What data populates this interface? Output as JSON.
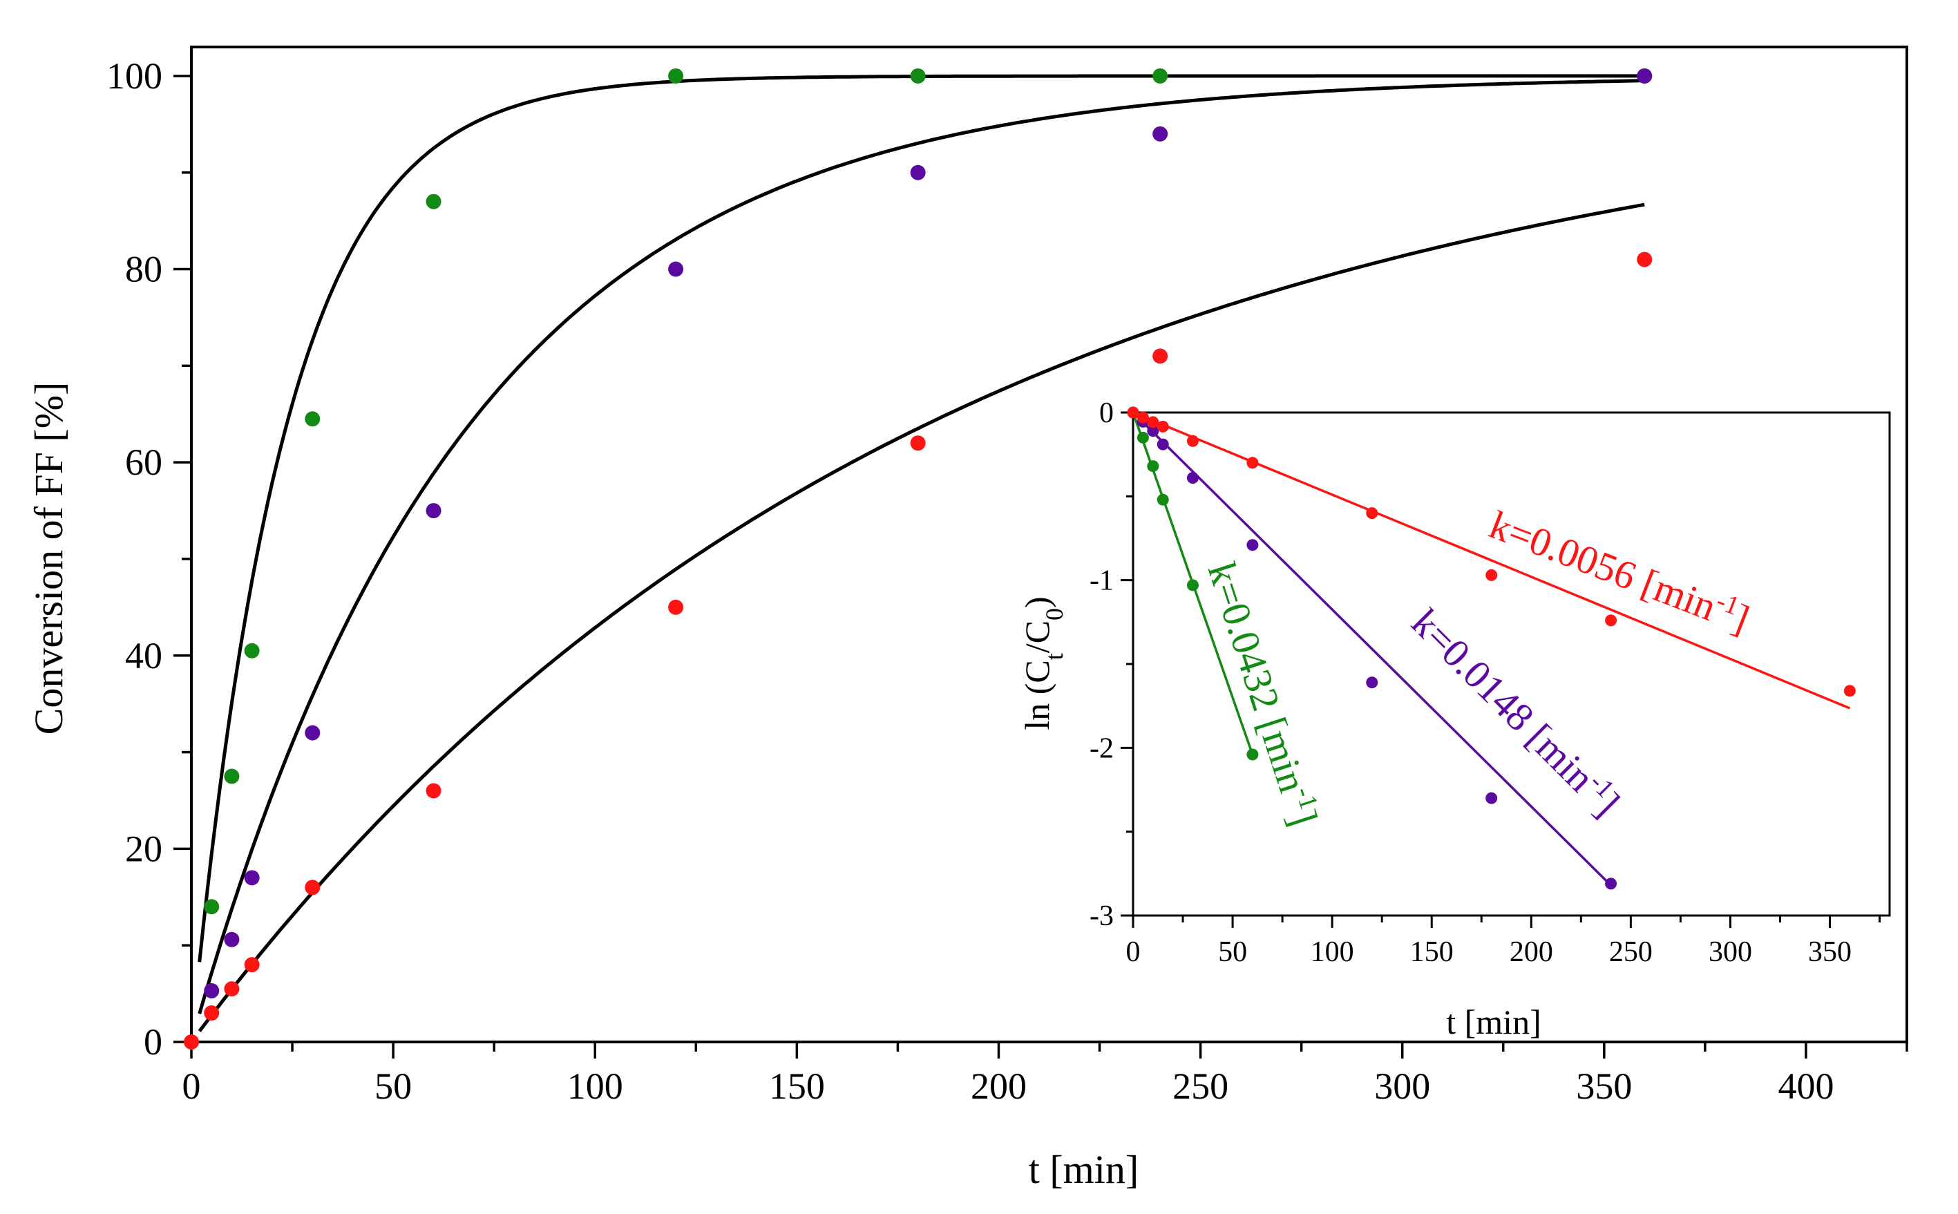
{
  "colors": {
    "green": "#138a13",
    "purple": "#5a0aa0",
    "red": "#ff1414",
    "axis": "#000000",
    "fit": "#000000"
  },
  "chart_data": [
    {
      "type": "scatter",
      "title": "",
      "xlabel": "t [min]",
      "ylabel": "Conversion of FF [%]",
      "xlim": [
        0,
        425
      ],
      "ylim": [
        0,
        103
      ],
      "xticks": [
        "0",
        "50",
        "100",
        "150",
        "200",
        "250",
        "300",
        "350",
        "400"
      ],
      "yticks": [
        "0",
        "20",
        "40",
        "60",
        "80",
        "100"
      ],
      "series": [
        {
          "name": "k=0.0432",
          "color": "green",
          "k": 0.0432,
          "x": [
            5,
            10,
            15,
            30,
            60,
            120,
            180,
            240,
            360
          ],
          "y": [
            14,
            27.5,
            40.5,
            64.5,
            87,
            100,
            100,
            100,
            100
          ]
        },
        {
          "name": "k=0.0148",
          "color": "purple",
          "k": 0.0148,
          "x": [
            5,
            10,
            15,
            30,
            60,
            120,
            180,
            240,
            360
          ],
          "y": [
            5.3,
            10.6,
            17,
            32,
            55,
            80,
            90,
            94,
            100
          ]
        },
        {
          "name": "k=0.0056",
          "color": "red",
          "k": 0.0056,
          "x": [
            0,
            5,
            10,
            15,
            30,
            60,
            120,
            180,
            240,
            360
          ],
          "y": [
            0,
            3,
            5.5,
            8,
            16,
            26,
            45,
            62,
            71,
            81
          ]
        }
      ],
      "fits": [
        {
          "model": "100*(1-exp(-k*t))",
          "k": 0.0432,
          "x_range": [
            2,
            360
          ]
        },
        {
          "model": "100*(1-exp(-k*t))",
          "k": 0.0148,
          "x_range": [
            2,
            360
          ]
        },
        {
          "model": "100*(1-exp(-k*t))",
          "k": 0.0056,
          "x_range": [
            2,
            360
          ]
        }
      ]
    },
    {
      "type": "scatter",
      "title": "",
      "xlabel": "t [min]",
      "ylabel": "ln (Ct/C0)",
      "ylabel_parts": {
        "prefix": "ln (C",
        "sub1": "t",
        "mid": "/C",
        "sub2": "0",
        "suffix": ")"
      },
      "xlim": [
        0,
        380
      ],
      "ylim": [
        -3,
        0
      ],
      "xticks": [
        "0",
        "50",
        "100",
        "150",
        "200",
        "250",
        "300",
        "350"
      ],
      "yticks": [
        "0",
        "-1",
        "-2",
        "-3"
      ],
      "series": [
        {
          "name": "k=0.0432",
          "color": "green",
          "x": [
            0,
            5,
            10,
            15,
            30,
            60
          ],
          "y": [
            0,
            -0.15,
            -0.32,
            -0.52,
            -1.03,
            -2.04
          ],
          "fit_slope": -0.034,
          "fit_x": [
            0,
            60
          ]
        },
        {
          "name": "k=0.0148",
          "color": "purple",
          "x": [
            0,
            5,
            10,
            15,
            30,
            60,
            120,
            180,
            240
          ],
          "y": [
            0,
            -0.055,
            -0.11,
            -0.19,
            -0.39,
            -0.79,
            -1.61,
            -2.3,
            -2.81
          ],
          "fit_slope": -0.01175,
          "fit_x": [
            0,
            240
          ]
        },
        {
          "name": "k=0.0056",
          "color": "red",
          "x": [
            0,
            5,
            10,
            15,
            30,
            60,
            120,
            180,
            240,
            360
          ],
          "y": [
            0,
            -0.03,
            -0.057,
            -0.084,
            -0.17,
            -0.3,
            -0.6,
            -0.97,
            -1.24,
            -1.66
          ],
          "fit_slope": -0.0049,
          "fit_x": [
            0,
            360
          ]
        }
      ],
      "annotations": [
        {
          "color": "red",
          "prefix": "k=0.0056 [min",
          "sup": "-1",
          "suffix": "]"
        },
        {
          "color": "purple",
          "prefix": "k=0.0148 [min",
          "sup": "-1",
          "suffix": "]"
        },
        {
          "color": "green",
          "prefix": "k=0.0432 [min",
          "sup": "-1",
          "suffix": "]"
        }
      ]
    }
  ]
}
